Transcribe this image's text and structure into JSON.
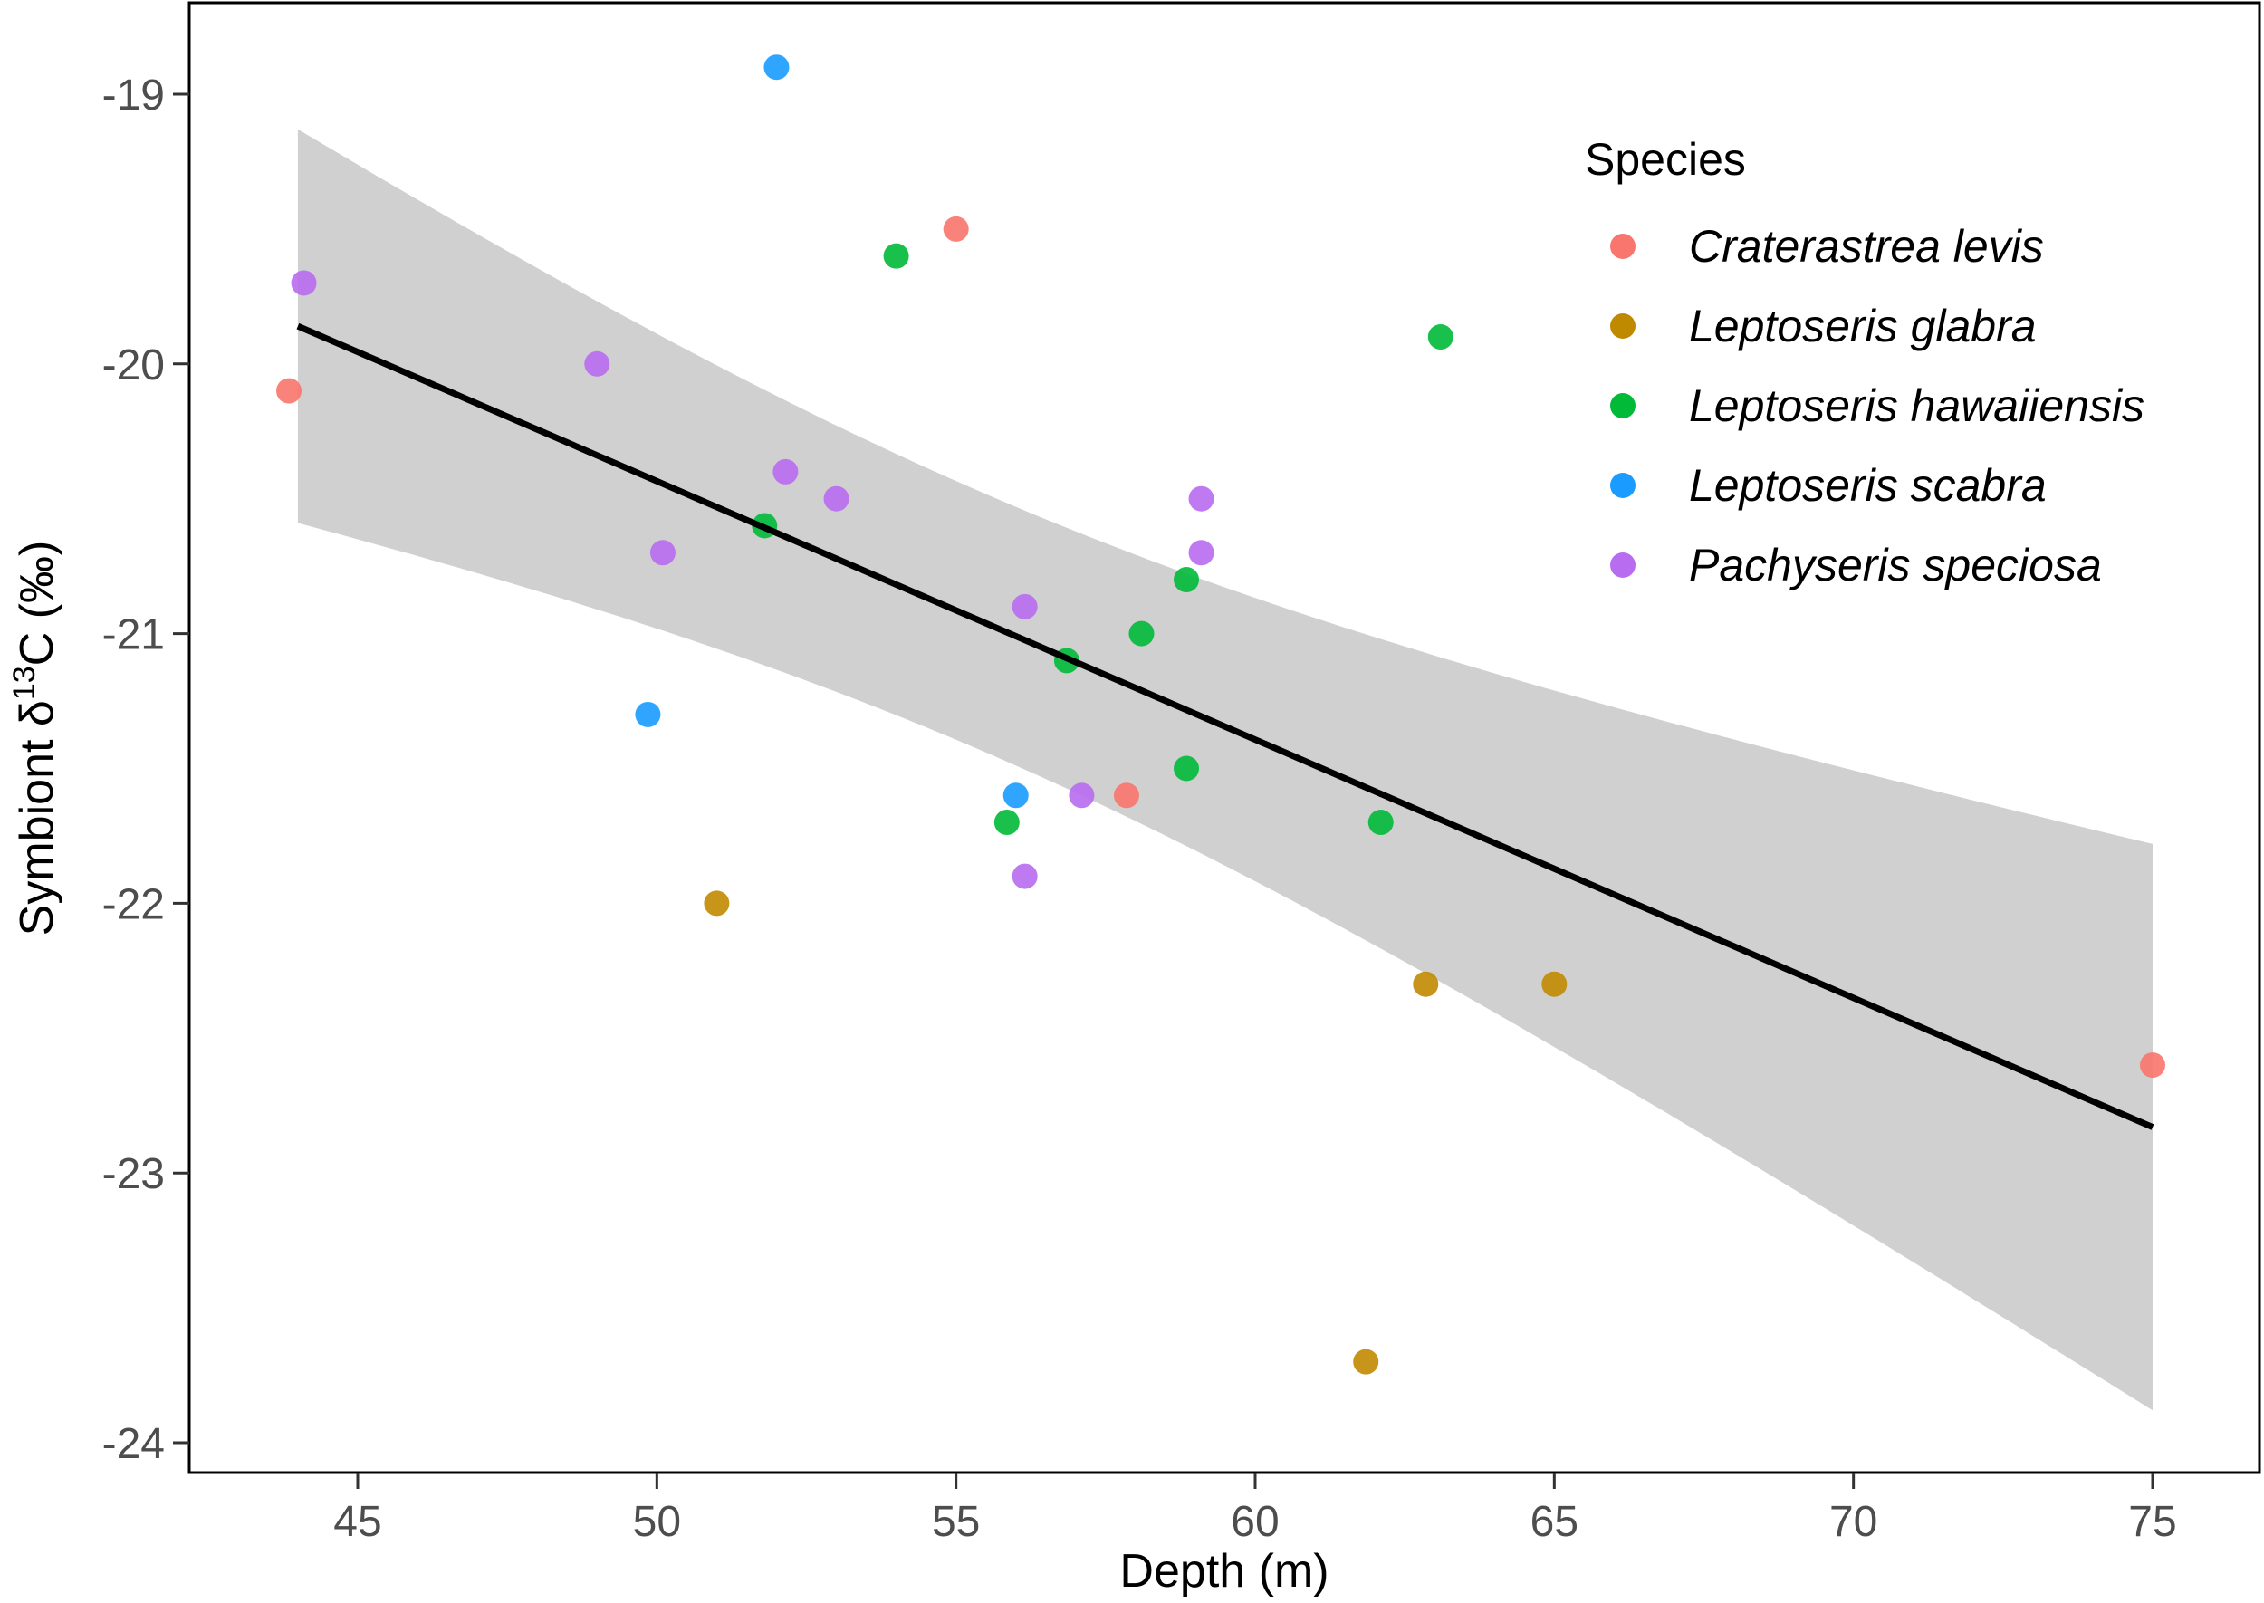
{
  "chart_data": {
    "type": "scatter",
    "title": "",
    "xlabel": "Depth (m)",
    "ylabel": "Symbiont δ13C (‰)",
    "ylabel_parts": {
      "pre": "Symbiont δ",
      "sup": "13",
      "post": "C (‰)"
    },
    "xlim": [
      42.2,
      76.8
    ],
    "ylim": [
      -24.04,
      -18.75
    ],
    "xticks": [
      45,
      50,
      55,
      60,
      65,
      70,
      75
    ],
    "yticks": [
      -19,
      -20,
      -21,
      -22,
      -23,
      -24
    ],
    "grid": false,
    "legend": {
      "title": "Species",
      "placement": "top-right"
    },
    "series": [
      {
        "name": "Craterastrea levis",
        "color": "#F8766D",
        "points": [
          [
            43.85,
            -20.1
          ],
          [
            55,
            -19.5
          ],
          [
            57.85,
            -21.6
          ],
          [
            75,
            -22.6
          ]
        ]
      },
      {
        "name": "Leptoseris glabra",
        "color": "#C08A00",
        "points": [
          [
            51,
            -22
          ],
          [
            62.85,
            -22.3
          ],
          [
            65,
            -22.3
          ],
          [
            61.85,
            -23.7
          ]
        ]
      },
      {
        "name": "Leptoseris hawaiiensis",
        "color": "#00BA38",
        "points": [
          [
            54,
            -19.6
          ],
          [
            63.1,
            -19.9
          ],
          [
            51.8,
            -20.6
          ],
          [
            58.85,
            -20.8
          ],
          [
            58.1,
            -21
          ],
          [
            56.85,
            -21.1
          ],
          [
            58.85,
            -21.5
          ],
          [
            55.85,
            -21.7
          ],
          [
            62.1,
            -21.7
          ]
        ]
      },
      {
        "name": "Leptoseris scabra",
        "color": "#1A9BFF",
        "points": [
          [
            52,
            -18.9
          ],
          [
            49.85,
            -21.3
          ],
          [
            56,
            -21.6
          ]
        ]
      },
      {
        "name": "Pachyseris speciosa",
        "color": "#B86CF0",
        "points": [
          [
            44.1,
            -19.7
          ],
          [
            49,
            -20
          ],
          [
            52.15,
            -20.4
          ],
          [
            53,
            -20.5
          ],
          [
            50.1,
            -20.7
          ],
          [
            59.1,
            -20.5
          ],
          [
            59.1,
            -20.7
          ],
          [
            56.15,
            -20.9
          ],
          [
            57.1,
            -21.6
          ],
          [
            56.15,
            -21.9
          ]
        ]
      }
    ],
    "fit": {
      "type": "linear",
      "x_range": [
        44,
        75
      ],
      "y_at_start": -19.86,
      "y_at_end": -22.83,
      "ci_center_x": 55.5,
      "ci_c": 0.2294,
      "ci_d": 0.002296,
      "ci_color": "#D0D0D0"
    }
  }
}
